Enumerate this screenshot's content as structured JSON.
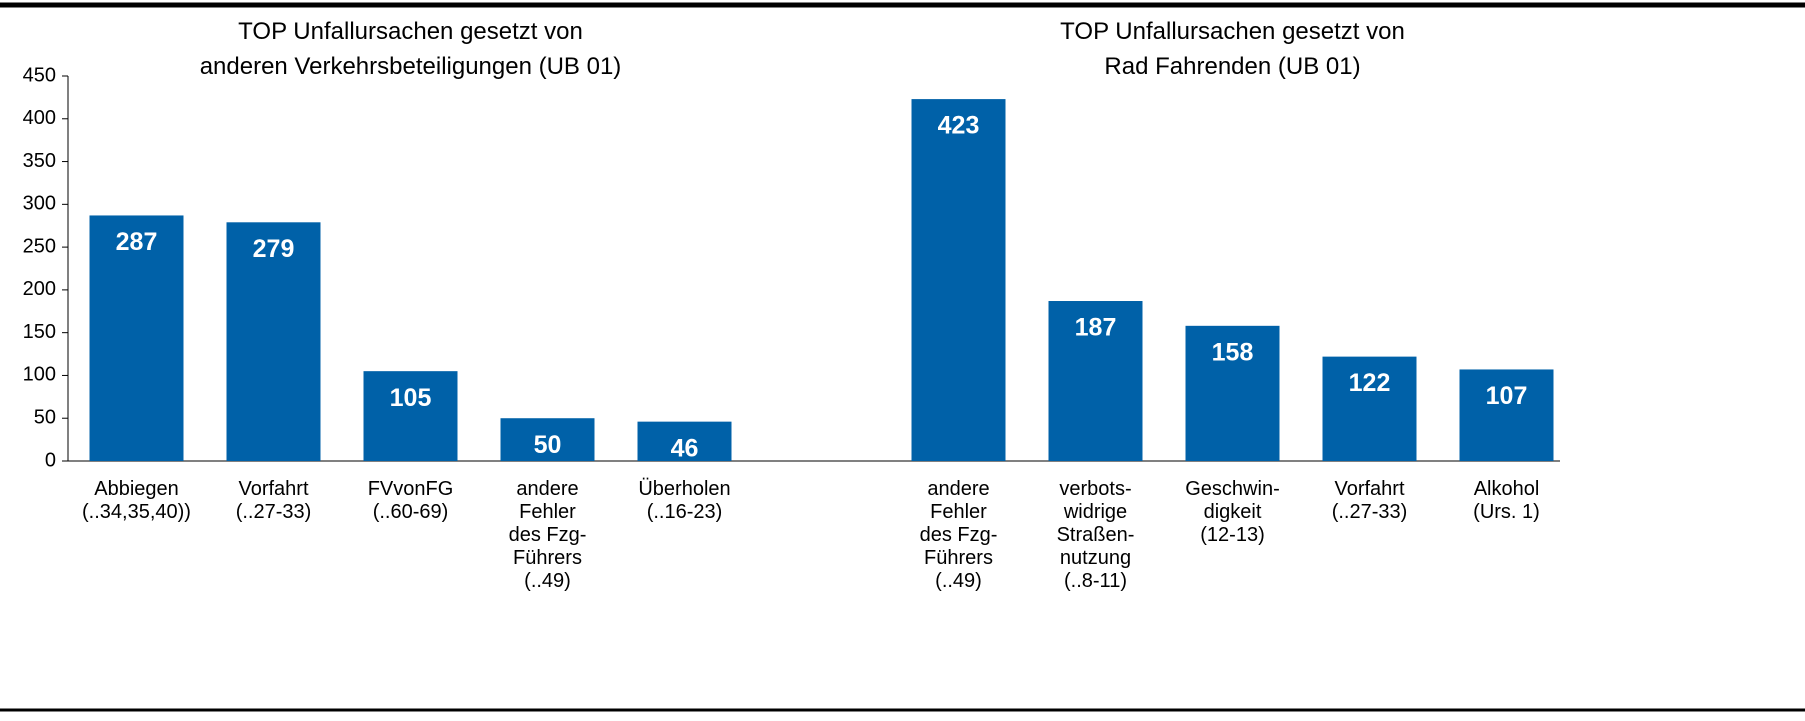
{
  "chart_data": [
    {
      "type": "bar",
      "title": "TOP Unfallursachen gesetzt von\nanderen Verkehrsbeteiligungen (UB 01)",
      "categories": [
        "Abbiegen\n(..34,35,40))",
        "Vorfahrt\n(..27-33)",
        "FVvonFG\n(..60-69)",
        "andere\nFehler\ndes Fzg-\nFührers\n(..49)",
        "Überholen\n(..16-23)"
      ],
      "values": [
        287,
        279,
        105,
        50,
        46
      ],
      "color": "#0061a8",
      "ylim": [
        0,
        450
      ],
      "yticks": [
        0,
        50,
        100,
        150,
        200,
        250,
        300,
        350,
        400,
        450
      ]
    },
    {
      "type": "bar",
      "title": "TOP Unfallursachen gesetzt von\nRad Fahrenden (UB 01)",
      "categories": [
        "andere\nFehler\ndes Fzg-\nFührers\n(..49)",
        "verbots-\nwidrige\nStraßen-\nnutzung\n(..8-11)",
        "Geschwin-\ndigkeit\n(12-13)",
        "Vorfahrt\n(..27-33)",
        "Alkohol\n(Urs. 1)"
      ],
      "values": [
        423,
        187,
        158,
        122,
        107
      ],
      "color": "#0061a8",
      "ylim": [
        0,
        450
      ]
    }
  ]
}
